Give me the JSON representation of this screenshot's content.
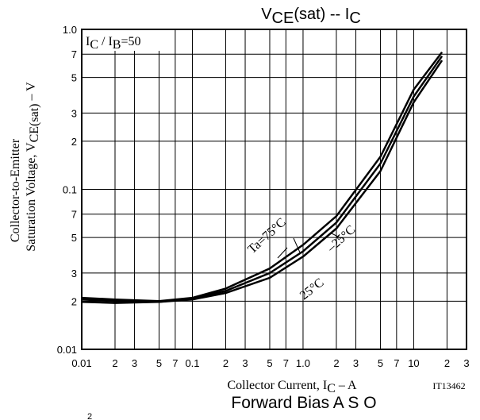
{
  "chart_data": {
    "type": "line",
    "title": [
      {
        "t": "V"
      },
      {
        "t": "CE",
        "sub": true
      },
      {
        "t": "(sat)  --  I"
      },
      {
        "t": "C",
        "sub": true
      }
    ],
    "annotation": [
      {
        "t": "I"
      },
      {
        "t": "C",
        "sub": true
      },
      {
        "t": " / I"
      },
      {
        "t": "B",
        "sub": true
      },
      {
        "t": "=50"
      }
    ],
    "y_label": [
      [
        {
          "t": "Collector-to-Emitter"
        }
      ],
      [
        {
          "t": "Saturation Voltage, V"
        },
        {
          "t": "CE(sat)",
          "sub": true
        },
        {
          "t": "  –  V"
        }
      ]
    ],
    "x_label": [
      {
        "t": "Collector Current, I"
      },
      {
        "t": "C",
        "sub": true
      },
      {
        "t": "  –  A"
      }
    ],
    "figure_id": "IT13462",
    "next_title": "Forward Bias A S O",
    "next_fragment": "2",
    "log_x": true,
    "log_y": true,
    "grid": true,
    "color": "#000000",
    "xlim": [
      0.01,
      30
    ],
    "ylim": [
      0.01,
      1.0
    ],
    "xticks": [
      0.01,
      {
        "value": 0.02,
        "label": "2"
      },
      {
        "value": 0.03,
        "label": "3"
      },
      {
        "value": 0.05,
        "label": "5"
      },
      {
        "value": 0.07,
        "label": "7"
      },
      0.1,
      {
        "value": 0.2,
        "label": "2"
      },
      {
        "value": 0.3,
        "label": "3"
      },
      {
        "value": 0.5,
        "label": "5"
      },
      {
        "value": 0.7,
        "label": "7"
      },
      {
        "value": 1,
        "label": "1.0"
      },
      {
        "value": 2,
        "label": "2"
      },
      {
        "value": 3,
        "label": "3"
      },
      {
        "value": 5,
        "label": "5"
      },
      {
        "value": 7,
        "label": "7"
      },
      10,
      {
        "value": 20,
        "label": "2"
      },
      {
        "value": 30,
        "label": "3"
      }
    ],
    "yticks": [
      0.01,
      {
        "value": 0.02,
        "label": "2"
      },
      {
        "value": 0.03,
        "label": "3"
      },
      {
        "value": 0.05,
        "label": "5"
      },
      {
        "value": 0.07,
        "label": "7"
      },
      0.1,
      {
        "value": 0.2,
        "label": "2"
      },
      {
        "value": 0.3,
        "label": "3"
      },
      {
        "value": 0.5,
        "label": "5"
      },
      {
        "value": 0.7,
        "label": "7"
      },
      {
        "value": 1,
        "label": "1.0"
      }
    ],
    "x": [
      0.01,
      0.02,
      0.05,
      0.1,
      0.2,
      0.5,
      1,
      2,
      5,
      10,
      18
    ],
    "series": [
      {
        "name": "Ta=75°C",
        "values": [
          0.021,
          0.0205,
          0.02,
          0.021,
          0.024,
          0.032,
          0.045,
          0.068,
          0.16,
          0.42,
          0.72
        ]
      },
      {
        "name": "–25°C",
        "values": [
          0.0205,
          0.02,
          0.0198,
          0.0208,
          0.0232,
          0.03,
          0.041,
          0.062,
          0.145,
          0.38,
          0.68
        ]
      },
      {
        "name": "25°C",
        "values": [
          0.0198,
          0.0195,
          0.0198,
          0.0205,
          0.0225,
          0.028,
          0.038,
          0.057,
          0.13,
          0.35,
          0.64
        ]
      }
    ]
  }
}
